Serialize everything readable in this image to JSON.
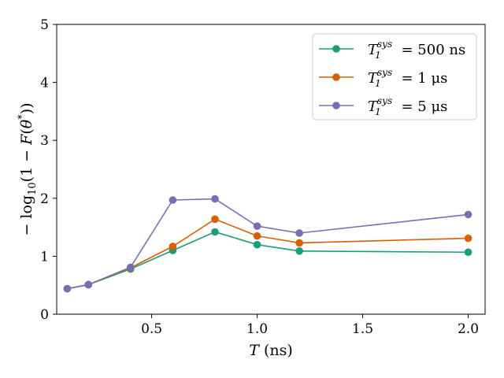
{
  "chart_data": {
    "type": "line",
    "title": "",
    "xlabel": "T (ns)",
    "ylabel": "-log10(1 - F(θ*))",
    "xlim": [
      0.05,
      2.08
    ],
    "ylim": [
      0,
      5
    ],
    "x_ticks": [
      0.5,
      1.0,
      1.5,
      2.0
    ],
    "x_tick_labels": [
      "0.5",
      "1.0",
      "1.5",
      "2.0"
    ],
    "y_ticks": [
      0,
      1,
      2,
      3,
      4,
      5
    ],
    "y_tick_labels": [
      "0",
      "1",
      "2",
      "3",
      "4",
      "5"
    ],
    "x": [
      0.1,
      0.2,
      0.4,
      0.6,
      0.8,
      1.0,
      1.2,
      2.0
    ],
    "grid": false,
    "legend_position": "top-right",
    "series": [
      {
        "name": "T1^sys = 500 ns",
        "legend": {
          "var": "T",
          "sub": "1",
          "sup": "sys",
          "rest": " = 500 ns"
        },
        "color": "#1b9e77",
        "values": [
          0.44,
          0.51,
          0.78,
          1.1,
          1.42,
          1.2,
          1.09,
          1.07
        ]
      },
      {
        "name": "T1^sys = 1 μs",
        "legend": {
          "var": "T",
          "sub": "1",
          "sup": "sys",
          "rest": " = 1 μs"
        },
        "color": "#d95f02",
        "values": [
          0.44,
          0.51,
          0.8,
          1.17,
          1.64,
          1.35,
          1.23,
          1.31
        ]
      },
      {
        "name": "T1^sys = 5 μs",
        "legend": {
          "var": "T",
          "sub": "1",
          "sup": "sys",
          "rest": " = 5 μs"
        },
        "color": "#7570b3",
        "values": [
          0.44,
          0.51,
          0.81,
          1.97,
          1.99,
          1.52,
          1.4,
          1.72
        ]
      }
    ]
  }
}
